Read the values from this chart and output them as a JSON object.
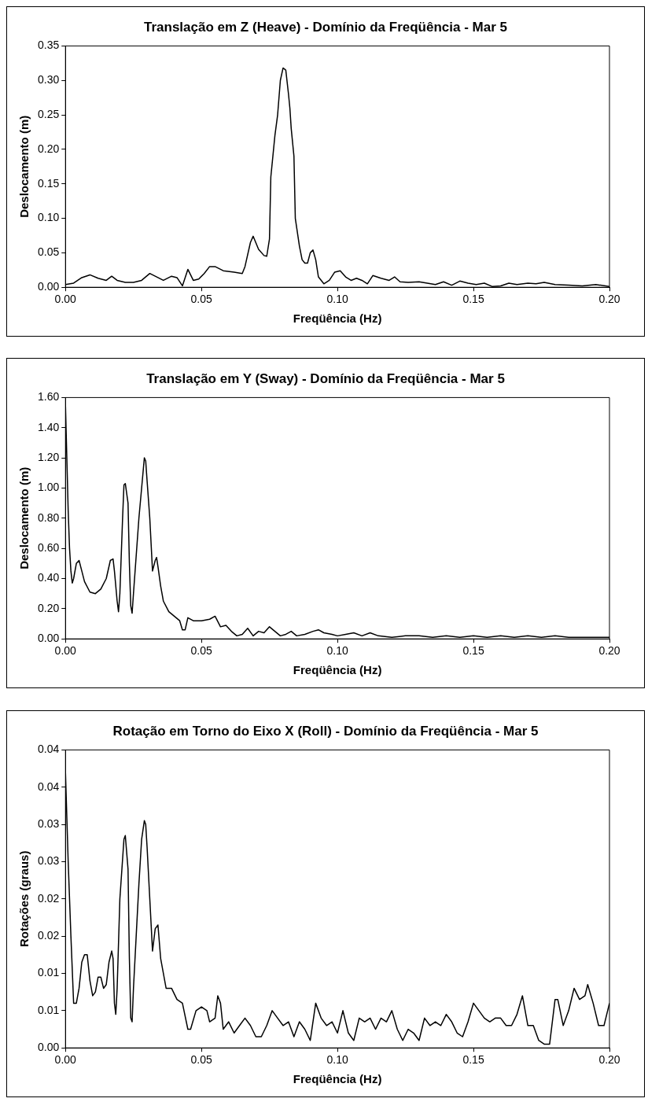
{
  "chart_data": [
    {
      "type": "line",
      "title": "Translação em Z (Heave) - Domínio da Freqüência - Mar 5",
      "xlabel": "Freqüência (Hz)",
      "ylabel": "Deslocamento (m)",
      "grid": false,
      "legend": false,
      "marker": "none",
      "line_style": "solid",
      "xlim": [
        0,
        0.2
      ],
      "xticks": [
        {
          "value": 0,
          "label": "0.00"
        },
        {
          "value": 0.05,
          "label": "0.05"
        },
        {
          "value": 0.1,
          "label": "0.10"
        },
        {
          "value": 0.15,
          "label": "0.15"
        },
        {
          "value": 0.2,
          "label": "0.20"
        }
      ],
      "ylim": [
        0,
        0.35
      ],
      "yticks": [
        {
          "value": 0,
          "label": "0.00"
        },
        {
          "value": 0.05,
          "label": "0.05"
        },
        {
          "value": 0.1,
          "label": "0.10"
        },
        {
          "value": 0.15,
          "label": "0.15"
        },
        {
          "value": 0.2,
          "label": "0.20"
        },
        {
          "value": 0.25,
          "label": "0.25"
        },
        {
          "value": 0.3,
          "label": "0.30"
        },
        {
          "value": 0.35,
          "label": "0.35"
        }
      ],
      "series": [
        {
          "color": "#000000",
          "x": [
            0,
            0.003,
            0.006,
            0.009,
            0.012,
            0.015,
            0.017,
            0.019,
            0.022,
            0.025,
            0.028,
            0.031,
            0.034,
            0.036,
            0.039,
            0.041,
            0.043,
            0.045,
            0.047,
            0.049,
            0.051,
            0.053,
            0.055,
            0.058,
            0.062,
            0.065,
            0.066,
            0.068,
            0.069,
            0.071,
            0.073,
            0.074,
            0.075,
            0.0755,
            0.077,
            0.078,
            0.079,
            0.08,
            0.081,
            0.082,
            0.0825,
            0.083,
            0.084,
            0.0845,
            0.086,
            0.087,
            0.088,
            0.089,
            0.09,
            0.091,
            0.092,
            0.093,
            0.095,
            0.097,
            0.099,
            0.101,
            0.103,
            0.105,
            0.107,
            0.109,
            0.111,
            0.113,
            0.116,
            0.119,
            0.121,
            0.123,
            0.126,
            0.13,
            0.133,
            0.136,
            0.139,
            0.142,
            0.145,
            0.148,
            0.151,
            0.154,
            0.157,
            0.16,
            0.163,
            0.166,
            0.17,
            0.173,
            0.176,
            0.18,
            0.185,
            0.19,
            0.195,
            0.2
          ],
          "values": [
            0.004,
            0.006,
            0.014,
            0.018,
            0.013,
            0.01,
            0.016,
            0.01,
            0.007,
            0.007,
            0.01,
            0.02,
            0.014,
            0.01,
            0.016,
            0.014,
            0.002,
            0.026,
            0.01,
            0.012,
            0.02,
            0.03,
            0.03,
            0.024,
            0.022,
            0.02,
            0.03,
            0.065,
            0.074,
            0.055,
            0.046,
            0.045,
            0.07,
            0.16,
            0.22,
            0.25,
            0.3,
            0.318,
            0.315,
            0.28,
            0.26,
            0.23,
            0.19,
            0.1,
            0.06,
            0.04,
            0.035,
            0.035,
            0.05,
            0.054,
            0.04,
            0.015,
            0.005,
            0.01,
            0.022,
            0.024,
            0.015,
            0.01,
            0.013,
            0.01,
            0.005,
            0.017,
            0.013,
            0.01,
            0.015,
            0.008,
            0.007,
            0.008,
            0.006,
            0.004,
            0.008,
            0.003,
            0.009,
            0.006,
            0.004,
            0.006,
            0.001,
            0.002,
            0.006,
            0.004,
            0.006,
            0.005,
            0.007,
            0.004,
            0.003,
            0.002,
            0.004,
            0.001
          ]
        }
      ]
    },
    {
      "type": "line",
      "title": "Translação em Y (Sway) - Domínio da Freqüência - Mar 5",
      "xlabel": "Freqüência (Hz)",
      "ylabel": "Deslocamento (m)",
      "grid": false,
      "legend": false,
      "marker": "none",
      "line_style": "solid",
      "xlim": [
        0,
        0.2
      ],
      "xticks": [
        {
          "value": 0,
          "label": "0.00"
        },
        {
          "value": 0.05,
          "label": "0.05"
        },
        {
          "value": 0.1,
          "label": "0.10"
        },
        {
          "value": 0.15,
          "label": "0.15"
        },
        {
          "value": 0.2,
          "label": "0.20"
        }
      ],
      "ylim": [
        0,
        1.6
      ],
      "yticks": [
        {
          "value": 0,
          "label": "0.00"
        },
        {
          "value": 0.2,
          "label": "0.20"
        },
        {
          "value": 0.4,
          "label": "0.40"
        },
        {
          "value": 0.6,
          "label": "0.60"
        },
        {
          "value": 0.8,
          "label": "0.80"
        },
        {
          "value": 1,
          "label": "1.00"
        },
        {
          "value": 1.2,
          "label": "1.20"
        },
        {
          "value": 1.4,
          "label": "1.40"
        },
        {
          "value": 1.6,
          "label": "1.60"
        }
      ],
      "series": [
        {
          "color": "#000000",
          "x": [
            0,
            0.0005,
            0.001,
            0.0015,
            0.002,
            0.0025,
            0.003,
            0.004,
            0.005,
            0.006,
            0.007,
            0.009,
            0.011,
            0.013,
            0.015,
            0.0165,
            0.0175,
            0.018,
            0.019,
            0.0195,
            0.02,
            0.021,
            0.0215,
            0.022,
            0.023,
            0.0235,
            0.024,
            0.0245,
            0.025,
            0.026,
            0.027,
            0.028,
            0.029,
            0.0295,
            0.03,
            0.031,
            0.032,
            0.033,
            0.0335,
            0.034,
            0.035,
            0.036,
            0.038,
            0.04,
            0.042,
            0.043,
            0.044,
            0.045,
            0.047,
            0.05,
            0.053,
            0.055,
            0.057,
            0.059,
            0.061,
            0.063,
            0.065,
            0.067,
            0.069,
            0.071,
            0.073,
            0.075,
            0.077,
            0.079,
            0.081,
            0.083,
            0.085,
            0.088,
            0.091,
            0.093,
            0.095,
            0.098,
            0.1,
            0.103,
            0.106,
            0.109,
            0.112,
            0.115,
            0.12,
            0.125,
            0.13,
            0.135,
            0.14,
            0.145,
            0.15,
            0.155,
            0.16,
            0.165,
            0.17,
            0.175,
            0.18,
            0.185,
            0.19,
            0.2
          ],
          "values": [
            1.55,
            1.2,
            0.85,
            0.6,
            0.45,
            0.37,
            0.4,
            0.5,
            0.52,
            0.45,
            0.38,
            0.31,
            0.3,
            0.33,
            0.4,
            0.52,
            0.53,
            0.45,
            0.25,
            0.18,
            0.3,
            0.8,
            1.02,
            1.03,
            0.9,
            0.5,
            0.22,
            0.17,
            0.3,
            0.55,
            0.8,
            1,
            1.2,
            1.18,
            1.05,
            0.8,
            0.45,
            0.52,
            0.54,
            0.48,
            0.35,
            0.25,
            0.18,
            0.15,
            0.12,
            0.06,
            0.06,
            0.14,
            0.12,
            0.12,
            0.13,
            0.15,
            0.08,
            0.09,
            0.05,
            0.02,
            0.03,
            0.07,
            0.02,
            0.05,
            0.04,
            0.08,
            0.05,
            0.02,
            0.03,
            0.05,
            0.02,
            0.03,
            0.05,
            0.06,
            0.04,
            0.03,
            0.02,
            0.03,
            0.04,
            0.02,
            0.04,
            0.02,
            0.01,
            0.02,
            0.02,
            0.01,
            0.02,
            0.01,
            0.02,
            0.01,
            0.02,
            0.01,
            0.02,
            0.01,
            0.02,
            0.01,
            0.01,
            0.01
          ]
        }
      ]
    },
    {
      "type": "line",
      "title": "Rotação em Torno do Eixo X (Roll) - Domínio da Freqüência - Mar 5",
      "xlabel": "Freqüência (Hz)",
      "ylabel": "Rotações (graus)",
      "grid": false,
      "legend": false,
      "marker": "none",
      "line_style": "solid",
      "xlim": [
        0,
        0.2
      ],
      "xticks": [
        {
          "value": 0,
          "label": "0.00"
        },
        {
          "value": 0.05,
          "label": "0.05"
        },
        {
          "value": 0.1,
          "label": "0.10"
        },
        {
          "value": 0.15,
          "label": "0.15"
        },
        {
          "value": 0.2,
          "label": "0.20"
        }
      ],
      "ylim": [
        0,
        0.04
      ],
      "yticks": [
        {
          "value": 0,
          "label": "0.00"
        },
        {
          "value": 0.005,
          "label": "0.01"
        },
        {
          "value": 0.01,
          "label": "0.01"
        },
        {
          "value": 0.015,
          "label": "0.02"
        },
        {
          "value": 0.02,
          "label": "0.02"
        },
        {
          "value": 0.025,
          "label": "0.03"
        },
        {
          "value": 0.03,
          "label": "0.03"
        },
        {
          "value": 0.035,
          "label": "0.04"
        },
        {
          "value": 0.04,
          "label": "0.04"
        }
      ],
      "series": [
        {
          "color": "#000000",
          "x": [
            0,
            0.001,
            0.002,
            0.003,
            0.004,
            0.005,
            0.006,
            0.007,
            0.008,
            0.009,
            0.01,
            0.011,
            0.012,
            0.013,
            0.014,
            0.015,
            0.016,
            0.017,
            0.0175,
            0.018,
            0.0185,
            0.019,
            0.02,
            0.0215,
            0.022,
            0.023,
            0.0235,
            0.024,
            0.0245,
            0.025,
            0.026,
            0.027,
            0.028,
            0.029,
            0.0295,
            0.03,
            0.031,
            0.032,
            0.033,
            0.034,
            0.035,
            0.037,
            0.039,
            0.041,
            0.043,
            0.045,
            0.046,
            0.048,
            0.05,
            0.052,
            0.053,
            0.055,
            0.056,
            0.057,
            0.058,
            0.06,
            0.062,
            0.064,
            0.066,
            0.068,
            0.07,
            0.072,
            0.074,
            0.076,
            0.078,
            0.08,
            0.082,
            0.084,
            0.086,
            0.088,
            0.09,
            0.092,
            0.094,
            0.096,
            0.098,
            0.1,
            0.102,
            0.104,
            0.106,
            0.108,
            0.11,
            0.112,
            0.114,
            0.116,
            0.118,
            0.12,
            0.122,
            0.124,
            0.126,
            0.128,
            0.13,
            0.132,
            0.134,
            0.136,
            0.138,
            0.14,
            0.142,
            0.144,
            0.146,
            0.148,
            0.15,
            0.152,
            0.154,
            0.156,
            0.158,
            0.16,
            0.162,
            0.164,
            0.166,
            0.168,
            0.17,
            0.172,
            0.174,
            0.176,
            0.178,
            0.18,
            0.181,
            0.183,
            0.185,
            0.187,
            0.189,
            0.191,
            0.192,
            0.194,
            0.196,
            0.198,
            0.2
          ],
          "values": [
            0.037,
            0.025,
            0.015,
            0.006,
            0.006,
            0.008,
            0.0115,
            0.0125,
            0.0125,
            0.009,
            0.007,
            0.0075,
            0.0095,
            0.0095,
            0.008,
            0.0085,
            0.0115,
            0.013,
            0.012,
            0.006,
            0.0045,
            0.008,
            0.02,
            0.028,
            0.0285,
            0.024,
            0.012,
            0.004,
            0.0035,
            0.008,
            0.015,
            0.022,
            0.028,
            0.0305,
            0.03,
            0.027,
            0.02,
            0.013,
            0.016,
            0.0165,
            0.012,
            0.008,
            0.008,
            0.0065,
            0.006,
            0.0025,
            0.0025,
            0.005,
            0.0055,
            0.005,
            0.0035,
            0.004,
            0.007,
            0.006,
            0.0025,
            0.0035,
            0.002,
            0.003,
            0.004,
            0.003,
            0.0015,
            0.0015,
            0.003,
            0.005,
            0.004,
            0.003,
            0.0035,
            0.0015,
            0.0035,
            0.0025,
            0.001,
            0.006,
            0.004,
            0.003,
            0.0035,
            0.002,
            0.005,
            0.002,
            0.001,
            0.004,
            0.0035,
            0.004,
            0.0025,
            0.004,
            0.0035,
            0.005,
            0.0025,
            0.001,
            0.0025,
            0.002,
            0.001,
            0.004,
            0.003,
            0.0035,
            0.003,
            0.0045,
            0.0035,
            0.002,
            0.0015,
            0.0035,
            0.006,
            0.005,
            0.004,
            0.0035,
            0.004,
            0.004,
            0.003,
            0.003,
            0.0045,
            0.007,
            0.003,
            0.003,
            0.001,
            0.0005,
            0.0005,
            0.0065,
            0.0065,
            0.003,
            0.005,
            0.008,
            0.0065,
            0.007,
            0.0085,
            0.006,
            0.003,
            0.003,
            0.006
          ]
        }
      ]
    }
  ]
}
